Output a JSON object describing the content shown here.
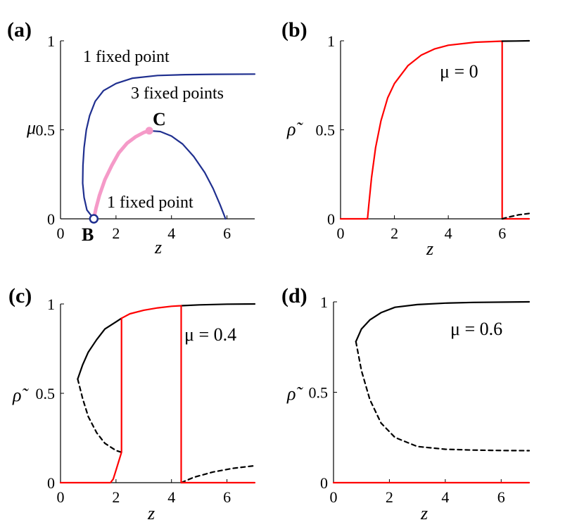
{
  "chart_data": [
    {
      "panel": "(a)",
      "type": "line",
      "xlabel": "z",
      "ylabel": "μ",
      "xlim": [
        0,
        7
      ],
      "ylim": [
        0,
        1
      ],
      "xticks": [
        "0",
        "2",
        "4",
        "6"
      ],
      "yticks": [
        "0",
        "0.5",
        "1"
      ],
      "annotations": [
        "1 fixed point",
        "3 fixed points",
        "1 fixed point",
        "C",
        "B"
      ],
      "colors": {
        "boundary": "#1f2f8f",
        "pink": "#f59ac8"
      },
      "series": [
        {
          "style": "solid",
          "color": "#1f2f8f",
          "points": [
            [
              1.2,
              0.0
            ],
            [
              0.95,
              0.05
            ],
            [
              0.85,
              0.12
            ],
            [
              0.8,
              0.2
            ],
            [
              0.81,
              0.3
            ],
            [
              0.85,
              0.4
            ],
            [
              0.93,
              0.5
            ],
            [
              1.05,
              0.58
            ],
            [
              1.25,
              0.66
            ],
            [
              1.55,
              0.72
            ],
            [
              2.0,
              0.76
            ],
            [
              2.6,
              0.79
            ],
            [
              3.5,
              0.805
            ],
            [
              4.5,
              0.81
            ],
            [
              5.5,
              0.812
            ],
            [
              7.0,
              0.813
            ]
          ]
        },
        {
          "style": "solid",
          "color": "#1f2f8f",
          "points": [
            [
              3.2,
              0.495
            ],
            [
              3.6,
              0.49
            ],
            [
              4.0,
              0.465
            ],
            [
              4.4,
              0.42
            ],
            [
              4.8,
              0.35
            ],
            [
              5.2,
              0.26
            ],
            [
              5.5,
              0.17
            ],
            [
              5.75,
              0.08
            ],
            [
              5.95,
              0.0
            ]
          ]
        },
        {
          "style": "solid",
          "color": "#f59ac8",
          "points": [
            [
              1.2,
              0.0
            ],
            [
              1.28,
              0.06
            ],
            [
              1.4,
              0.13
            ],
            [
              1.6,
              0.22
            ],
            [
              1.85,
              0.3
            ],
            [
              2.1,
              0.37
            ],
            [
              2.4,
              0.425
            ],
            [
              2.7,
              0.46
            ],
            [
              3.0,
              0.485
            ],
            [
              3.2,
              0.495
            ]
          ]
        }
      ],
      "markers": [
        {
          "label": "C",
          "x": 3.2,
          "y": 0.495,
          "style": "filled",
          "color": "#f59ac8"
        },
        {
          "label": "B",
          "x": 1.2,
          "y": 0.0,
          "style": "open",
          "color": "#1f2f8f"
        }
      ]
    },
    {
      "panel": "(b)",
      "type": "line",
      "xlabel": "z",
      "ylabel": "ρ̃",
      "xlim": [
        0,
        7
      ],
      "ylim": [
        0,
        1
      ],
      "xticks": [
        "0",
        "2",
        "4",
        "6"
      ],
      "yticks": [
        "0",
        "0.5",
        "1"
      ],
      "mu_text": "μ = 0",
      "series": [
        {
          "style": "solid",
          "color": "#ff0000",
          "points": [
            [
              0,
              0
            ],
            [
              1.0,
              0
            ],
            [
              1.05,
              0.08
            ],
            [
              1.15,
              0.23
            ],
            [
              1.3,
              0.4
            ],
            [
              1.5,
              0.55
            ],
            [
              1.75,
              0.68
            ],
            [
              2.0,
              0.76
            ],
            [
              2.5,
              0.86
            ],
            [
              3.0,
              0.92
            ],
            [
              3.5,
              0.955
            ],
            [
              4.0,
              0.975
            ],
            [
              5.0,
              0.992
            ],
            [
              6.0,
              0.998
            ],
            [
              6.0,
              0.0
            ],
            [
              7.0,
              0.0
            ]
          ]
        },
        {
          "style": "solid",
          "color": "#000000",
          "points": [
            [
              6.0,
              0.998
            ],
            [
              6.5,
              0.999
            ],
            [
              7.0,
              1.0
            ]
          ]
        },
        {
          "style": "dashed",
          "color": "#000000",
          "points": [
            [
              6.0,
              0.0
            ],
            [
              6.3,
              0.012
            ],
            [
              6.6,
              0.022
            ],
            [
              7.0,
              0.03
            ]
          ]
        }
      ]
    },
    {
      "panel": "(c)",
      "type": "line",
      "xlabel": "z",
      "ylabel": "ρ̃",
      "xlim": [
        0,
        7
      ],
      "ylim": [
        0,
        1
      ],
      "xticks": [
        "0",
        "2",
        "4",
        "6"
      ],
      "yticks": [
        "0",
        "0.5",
        "1"
      ],
      "mu_text": "μ = 0.4",
      "series": [
        {
          "style": "solid",
          "color": "#000000",
          "points": [
            [
              0.62,
              0.58
            ],
            [
              0.8,
              0.66
            ],
            [
              1.0,
              0.73
            ],
            [
              1.3,
              0.8
            ],
            [
              1.6,
              0.86
            ],
            [
              2.0,
              0.9
            ],
            [
              2.2,
              0.92
            ]
          ]
        },
        {
          "style": "solid",
          "color": "#000000",
          "points": [
            [
              4.35,
              0.99
            ],
            [
              5.0,
              0.995
            ],
            [
              6.0,
              0.999
            ],
            [
              7.0,
              1.0
            ]
          ]
        },
        {
          "style": "dashed",
          "color": "#000000",
          "points": [
            [
              0.62,
              0.58
            ],
            [
              0.8,
              0.47
            ],
            [
              1.0,
              0.37
            ],
            [
              1.3,
              0.28
            ],
            [
              1.6,
              0.22
            ],
            [
              2.0,
              0.18
            ],
            [
              2.2,
              0.17
            ]
          ]
        },
        {
          "style": "dashed",
          "color": "#000000",
          "points": [
            [
              4.35,
              0.0
            ],
            [
              4.8,
              0.03
            ],
            [
              5.5,
              0.06
            ],
            [
              6.2,
              0.08
            ],
            [
              7.0,
              0.095
            ]
          ]
        },
        {
          "style": "solid",
          "color": "#ff0000",
          "points": [
            [
              0,
              0
            ],
            [
              1.8,
              0
            ],
            [
              1.9,
              0.02
            ],
            [
              2.0,
              0.07
            ],
            [
              2.2,
              0.17
            ],
            [
              2.2,
              0.92
            ],
            [
              2.5,
              0.945
            ],
            [
              3.0,
              0.965
            ],
            [
              3.5,
              0.978
            ],
            [
              4.0,
              0.987
            ],
            [
              4.35,
              0.99
            ],
            [
              4.35,
              0.0
            ],
            [
              7.0,
              0.0
            ]
          ]
        }
      ]
    },
    {
      "panel": "(d)",
      "type": "line",
      "xlabel": "z",
      "ylabel": "ρ̃",
      "xlim": [
        0,
        7
      ],
      "ylim": [
        0,
        1
      ],
      "xticks": [
        "0",
        "2",
        "4",
        "6"
      ],
      "yticks": [
        "0",
        "0.5",
        "1"
      ],
      "mu_text": "μ = 0.6",
      "series": [
        {
          "style": "solid",
          "color": "#000000",
          "points": [
            [
              0.8,
              0.78
            ],
            [
              1.0,
              0.85
            ],
            [
              1.3,
              0.9
            ],
            [
              1.7,
              0.94
            ],
            [
              2.2,
              0.97
            ],
            [
              3.0,
              0.985
            ],
            [
              4.0,
              0.993
            ],
            [
              5.0,
              0.997
            ],
            [
              7.0,
              1.0
            ]
          ]
        },
        {
          "style": "dashed",
          "color": "#000000",
          "points": [
            [
              0.8,
              0.78
            ],
            [
              1.0,
              0.62
            ],
            [
              1.3,
              0.46
            ],
            [
              1.7,
              0.33
            ],
            [
              2.2,
              0.25
            ],
            [
              3.0,
              0.2
            ],
            [
              4.0,
              0.185
            ],
            [
              5.0,
              0.18
            ],
            [
              6.0,
              0.178
            ],
            [
              7.0,
              0.177
            ]
          ]
        },
        {
          "style": "solid",
          "color": "#ff0000",
          "points": [
            [
              0,
              0
            ],
            [
              7.0,
              0
            ]
          ]
        }
      ]
    }
  ]
}
